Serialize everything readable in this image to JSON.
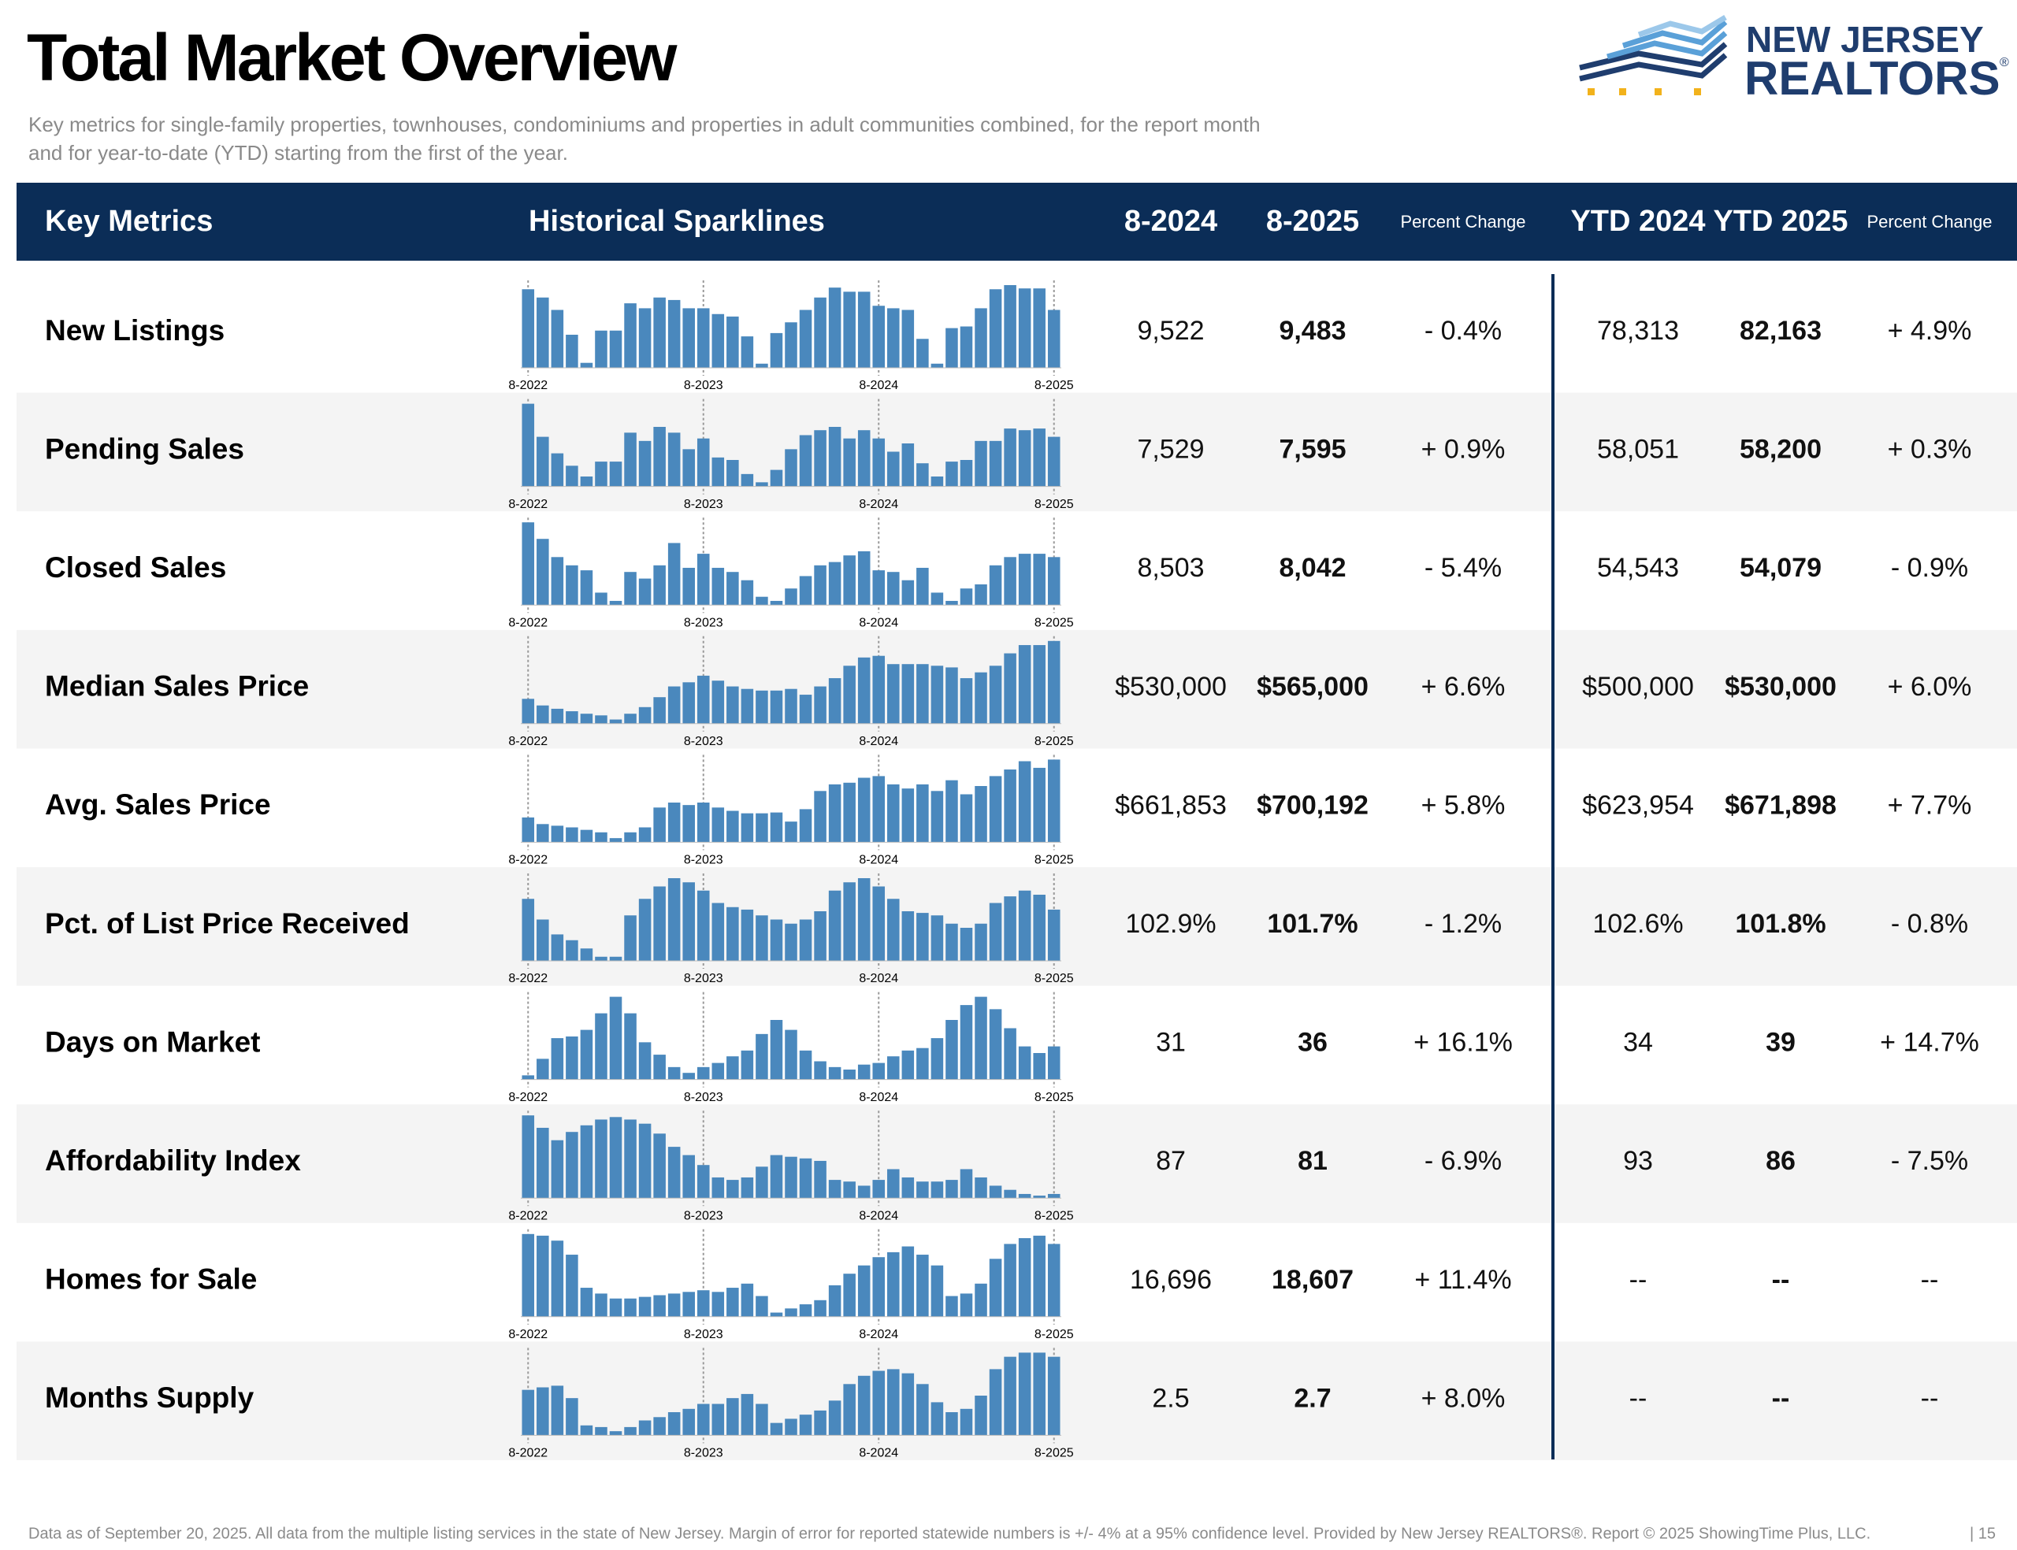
{
  "header": {
    "title": "Total Market Overview",
    "subtitle_lines": [
      "Key metrics for single-family properties, townhouses, condominiums and properties in adult communities combined, for the report month",
      "and for year-to-date (YTD) starting from the first of the year."
    ]
  },
  "logo": {
    "line1": "NEW JERSEY",
    "line2": "REALTORS",
    "mark": "®"
  },
  "table": {
    "columns": [
      "Key Metrics",
      "Historical Sparklines",
      "8-2024",
      "8-2025",
      "Percent Change",
      "YTD 2024",
      "YTD 2025",
      "Percent Change"
    ],
    "sparkline_labels": [
      "8-2022",
      "8-2023",
      "8-2024",
      "8-2025"
    ],
    "rows": [
      {
        "metric": "New Listings",
        "sparkline": [
          95,
          85,
          70,
          40,
          6,
          45,
          45,
          78,
          72,
          85,
          82,
          72,
          72,
          65,
          62,
          38,
          5,
          42,
          55,
          70,
          85,
          97,
          92,
          92,
          75,
          72,
          70,
          35,
          5,
          48,
          50,
          72,
          95,
          100,
          96,
          96,
          70
        ],
        "values": [
          "9,522",
          "9,483",
          "- 0.4%",
          "78,313",
          "82,163",
          "+ 4.9%"
        ]
      },
      {
        "metric": "Pending Sales",
        "sparkline": [
          100,
          60,
          40,
          25,
          12,
          30,
          30,
          65,
          55,
          72,
          65,
          45,
          58,
          35,
          32,
          15,
          5,
          20,
          45,
          62,
          68,
          72,
          58,
          68,
          58,
          42,
          52,
          28,
          12,
          30,
          32,
          55,
          55,
          70,
          68,
          70,
          60
        ],
        "values": [
          "7,529",
          "7,595",
          "+ 0.9%",
          "58,051",
          "58,200",
          "+ 0.3%"
        ]
      },
      {
        "metric": "Closed Sales",
        "sparkline": [
          100,
          80,
          58,
          48,
          42,
          15,
          5,
          40,
          32,
          48,
          75,
          45,
          62,
          45,
          40,
          30,
          10,
          5,
          20,
          35,
          48,
          52,
          60,
          65,
          42,
          40,
          30,
          45,
          15,
          5,
          20,
          25,
          48,
          58,
          62,
          62,
          58
        ],
        "values": [
          "8,503",
          "8,042",
          "- 5.4%",
          "54,543",
          "54,079",
          "- 0.9%"
        ]
      },
      {
        "metric": "Median Sales Price",
        "sparkline": [
          30,
          22,
          18,
          15,
          12,
          10,
          5,
          12,
          20,
          32,
          45,
          50,
          58,
          52,
          45,
          42,
          40,
          40,
          42,
          35,
          45,
          55,
          70,
          80,
          82,
          72,
          72,
          72,
          70,
          68,
          55,
          62,
          70,
          85,
          95,
          95,
          100
        ],
        "values": [
          "$530,000",
          "$565,000",
          "+ 6.6%",
          "$500,000",
          "$530,000",
          "+ 6.0%"
        ]
      },
      {
        "metric": "Avg. Sales Price",
        "sparkline": [
          30,
          22,
          20,
          18,
          15,
          12,
          5,
          12,
          18,
          42,
          48,
          45,
          48,
          42,
          38,
          35,
          35,
          36,
          25,
          40,
          62,
          70,
          72,
          78,
          80,
          70,
          65,
          70,
          62,
          75,
          58,
          68,
          80,
          88,
          98,
          90,
          100
        ],
        "values": [
          "$661,853",
          "$700,192",
          "+ 5.8%",
          "$623,954",
          "$671,898",
          "+ 7.7%"
        ]
      },
      {
        "metric": "Pct. of List Price Received",
        "sparkline": [
          75,
          50,
          32,
          25,
          15,
          5,
          5,
          55,
          75,
          90,
          100,
          95,
          85,
          70,
          65,
          62,
          55,
          50,
          45,
          50,
          60,
          85,
          95,
          100,
          90,
          75,
          60,
          58,
          55,
          45,
          40,
          45,
          70,
          78,
          85,
          80,
          62
        ],
        "values": [
          "102.9%",
          "101.7%",
          "- 1.2%",
          "102.6%",
          "101.8%",
          "- 0.8%"
        ]
      },
      {
        "metric": "Days on Market",
        "sparkline": [
          5,
          25,
          50,
          52,
          60,
          80,
          100,
          80,
          45,
          30,
          15,
          8,
          15,
          20,
          28,
          35,
          55,
          72,
          60,
          35,
          22,
          15,
          12,
          18,
          20,
          28,
          35,
          38,
          50,
          72,
          90,
          100,
          85,
          62,
          40,
          32,
          40
        ],
        "values": [
          "31",
          "36",
          "+ 16.1%",
          "34",
          "39",
          "+ 14.7%"
        ]
      },
      {
        "metric": "Affordability Index",
        "sparkline": [
          100,
          85,
          70,
          80,
          88,
          95,
          98,
          95,
          90,
          78,
          62,
          52,
          40,
          25,
          22,
          25,
          38,
          52,
          50,
          48,
          45,
          22,
          20,
          15,
          22,
          35,
          25,
          20,
          20,
          22,
          35,
          25,
          15,
          10,
          5,
          3,
          5
        ],
        "values": [
          "87",
          "81",
          "- 6.9%",
          "93",
          "86",
          "- 7.5%"
        ]
      },
      {
        "metric": "Homes for Sale",
        "sparkline": [
          100,
          98,
          92,
          75,
          35,
          28,
          22,
          22,
          24,
          26,
          28,
          30,
          32,
          30,
          35,
          40,
          25,
          5,
          10,
          15,
          20,
          38,
          52,
          62,
          72,
          78,
          85,
          75,
          62,
          25,
          28,
          40,
          70,
          88,
          95,
          98,
          88
        ],
        "values": [
          "16,696",
          "18,607",
          "+ 11.4%",
          "--",
          "--",
          "--"
        ]
      },
      {
        "metric": "Months Supply",
        "sparkline": [
          55,
          58,
          60,
          45,
          12,
          10,
          5,
          10,
          18,
          22,
          28,
          32,
          38,
          38,
          45,
          50,
          38,
          15,
          20,
          25,
          30,
          42,
          62,
          72,
          78,
          80,
          75,
          62,
          40,
          28,
          32,
          48,
          80,
          95,
          100,
          100,
          95
        ],
        "values": [
          "2.5",
          "2.7",
          "+ 8.0%",
          "--",
          "--",
          "--"
        ]
      }
    ]
  },
  "footer": {
    "note": "Data as of September 20, 2025. All data from the multiple listing services in the state of New Jersey. Margin of error for reported statewide numbers is +/- 4% at a 95% confidence level. Provided by New Jersey REALTORS®. Report © 2025 ShowingTime Plus, LLC.",
    "page": "| 15"
  }
}
